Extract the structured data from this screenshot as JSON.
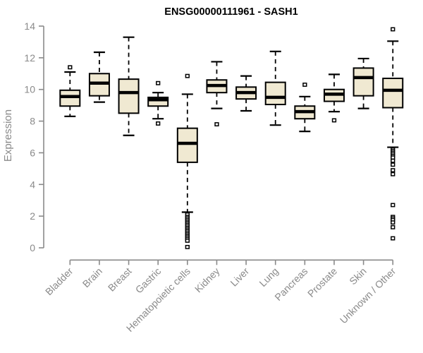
{
  "chart_data": {
    "type": "boxplot",
    "title": "ENSG00000111961 - SASH1",
    "ylabel": "Expression",
    "xlabel": "",
    "ylim": [
      0,
      14
    ],
    "yticks": [
      0,
      2,
      4,
      6,
      8,
      10,
      12,
      14
    ],
    "grid": false,
    "legend": null,
    "categories": [
      "Bladder",
      "Brain",
      "Breast",
      "Gastric",
      "Hematopoietic cells",
      "Kidney",
      "Liver",
      "Lung",
      "Pancreas",
      "Prostate",
      "Skin",
      "Unknown / Other"
    ],
    "series": [
      {
        "name": "Bladder",
        "whisker_low": 8.3,
        "q1": 8.95,
        "median": 9.55,
        "q3": 9.95,
        "whisker_high": 11.1,
        "outliers": [
          11.4
        ]
      },
      {
        "name": "Brain",
        "whisker_low": 9.2,
        "q1": 9.6,
        "median": 10.4,
        "q3": 11.0,
        "whisker_high": 12.35,
        "outliers": []
      },
      {
        "name": "Breast",
        "whisker_low": 7.1,
        "q1": 8.5,
        "median": 9.8,
        "q3": 10.65,
        "whisker_high": 13.3,
        "outliers": []
      },
      {
        "name": "Gastric",
        "whisker_low": 8.15,
        "q1": 8.95,
        "median": 9.35,
        "q3": 9.5,
        "whisker_high": 9.8,
        "outliers": [
          10.4,
          7.85
        ]
      },
      {
        "name": "Hematopoietic cells",
        "whisker_low": 2.25,
        "q1": 5.4,
        "median": 6.6,
        "q3": 7.55,
        "whisker_high": 9.7,
        "outliers": [
          10.85,
          2.1,
          1.95,
          1.85,
          1.75,
          1.65,
          1.55,
          1.45,
          1.35,
          1.25,
          1.15,
          1.05,
          0.95,
          0.85,
          0.75,
          0.65,
          0.55,
          0.45,
          0.05
        ]
      },
      {
        "name": "Kidney",
        "whisker_low": 8.8,
        "q1": 9.8,
        "median": 10.25,
        "q3": 10.6,
        "whisker_high": 11.75,
        "outliers": [
          7.8
        ]
      },
      {
        "name": "Liver",
        "whisker_low": 8.65,
        "q1": 9.4,
        "median": 9.8,
        "q3": 10.15,
        "whisker_high": 10.85,
        "outliers": []
      },
      {
        "name": "Lung",
        "whisker_low": 7.75,
        "q1": 9.05,
        "median": 9.5,
        "q3": 10.45,
        "whisker_high": 12.4,
        "outliers": []
      },
      {
        "name": "Pancreas",
        "whisker_low": 7.35,
        "q1": 8.15,
        "median": 8.6,
        "q3": 8.95,
        "whisker_high": 9.55,
        "outliers": [
          10.3
        ]
      },
      {
        "name": "Prostate",
        "whisker_low": 8.6,
        "q1": 9.25,
        "median": 9.7,
        "q3": 10.0,
        "whisker_high": 10.95,
        "outliers": [
          8.05
        ]
      },
      {
        "name": "Skin",
        "whisker_low": 8.8,
        "q1": 9.6,
        "median": 10.75,
        "q3": 11.35,
        "whisker_high": 11.95,
        "outliers": []
      },
      {
        "name": "Unknown / Other",
        "whisker_low": 6.35,
        "q1": 8.85,
        "median": 9.95,
        "q3": 10.7,
        "whisker_high": 13.05,
        "outliers": [
          13.8,
          6.2,
          6.1,
          6.0,
          5.9,
          5.8,
          5.7,
          5.5,
          5.25,
          4.9,
          4.65,
          2.7,
          1.95,
          1.85,
          1.75,
          1.6,
          1.3,
          0.6
        ]
      }
    ],
    "style": {
      "box_fill": "#f0e9d2",
      "box_stroke": "#000000",
      "median_color": "#000000",
      "whisker_color": "#000000",
      "outlier_stroke": "#000000",
      "outlier_fill": "#ffffff",
      "axis_color": "#8a8a8a",
      "tick_label_color": "#8a8a8a",
      "title_color": "#000000",
      "background": "#ffffff"
    }
  }
}
